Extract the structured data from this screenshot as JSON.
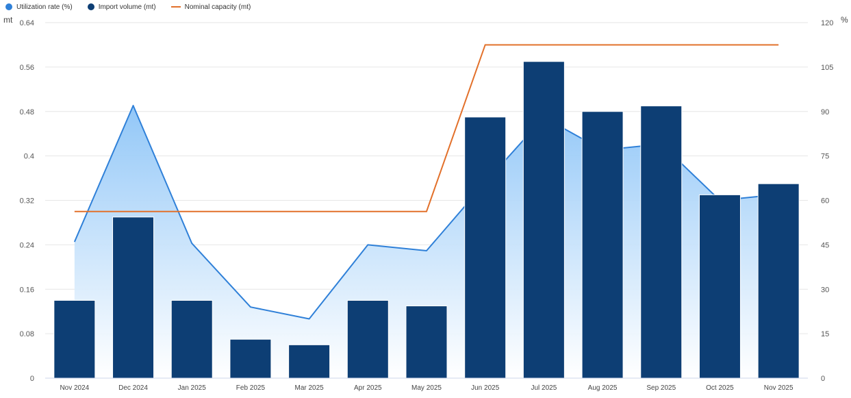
{
  "chart_data": {
    "type": "bar",
    "categories": [
      "Nov 2024",
      "Dec 2024",
      "Jan 2025",
      "Feb 2025",
      "Mar 2025",
      "Apr 2025",
      "May 2025",
      "Jun 2025",
      "Jul 2025",
      "Aug 2025",
      "Sep 2025",
      "Oct 2025",
      "Nov 2025"
    ],
    "series": [
      {
        "name": "Utilization rate (%)",
        "type": "area",
        "axis": "right",
        "color": "#2f80d8",
        "values": [
          46,
          92,
          45.5,
          24,
          20,
          45,
          43,
          66,
          88,
          77,
          79,
          60,
          62
        ]
      },
      {
        "name": "Import volume (mt)",
        "type": "bar",
        "axis": "left",
        "color": "#0d3e74",
        "values": [
          0.14,
          0.29,
          0.14,
          0.07,
          0.06,
          0.14,
          0.13,
          0.47,
          0.57,
          0.48,
          0.49,
          0.33,
          0.35
        ]
      },
      {
        "name": "Nominal capacity (mt)",
        "type": "line",
        "axis": "left",
        "color": "#e2702a",
        "values": [
          0.3,
          0.3,
          0.3,
          0.3,
          0.3,
          0.3,
          0.3,
          0.6,
          0.6,
          0.6,
          0.6,
          0.6,
          0.6
        ]
      }
    ],
    "y_left": {
      "unit": "mt",
      "ticks": [
        "0",
        "0.08",
        "0.16",
        "0.24",
        "0.32",
        "0.4",
        "0.48",
        "0.56",
        "0.64"
      ],
      "range": [
        0,
        0.64
      ]
    },
    "y_right": {
      "unit": "%",
      "ticks": [
        "0",
        "15",
        "30",
        "45",
        "60",
        "75",
        "90",
        "105",
        "120"
      ],
      "range": [
        0,
        120
      ]
    },
    "legend_position": "top-left",
    "grid": true
  }
}
